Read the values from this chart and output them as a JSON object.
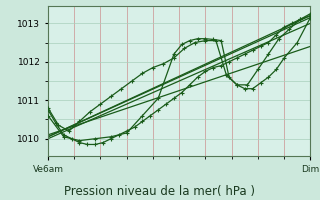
{
  "bg_color": "#cce8dc",
  "plot_bg_color": "#d8f0e8",
  "grid_color_v": "#dda0a0",
  "grid_color_h": "#aad0bc",
  "line_color": "#1a5c1a",
  "title": "Pression niveau de la mer( hPa )",
  "title_fontsize": 8.5,
  "xlabel_left": "Ve6am",
  "xlabel_right": "Dim",
  "ylabel_ticks": [
    1010,
    1011,
    1012,
    1013
  ],
  "ylim": [
    1009.55,
    1013.45
  ],
  "xlim": [
    0,
    100
  ],
  "line1_x": [
    0,
    3,
    6,
    9,
    12,
    15,
    18,
    21,
    24,
    27,
    30,
    33,
    36,
    39,
    42,
    45,
    48,
    51,
    54,
    57,
    60,
    63,
    66,
    69,
    72,
    75,
    78,
    81,
    84,
    87,
    90,
    93,
    96,
    100
  ],
  "line1_y": [
    1010.75,
    1010.4,
    1010.1,
    1010.0,
    1009.9,
    1009.85,
    1009.85,
    1009.9,
    1010.0,
    1010.1,
    1010.2,
    1010.3,
    1010.45,
    1010.6,
    1010.75,
    1010.9,
    1011.05,
    1011.2,
    1011.4,
    1011.6,
    1011.75,
    1011.85,
    1011.9,
    1012.0,
    1012.1,
    1012.2,
    1012.3,
    1012.4,
    1012.5,
    1012.7,
    1012.9,
    1013.0,
    1013.1,
    1013.2
  ],
  "line2_x": [
    0,
    6,
    12,
    18,
    24,
    30,
    36,
    42,
    48,
    51,
    54,
    57,
    60,
    63,
    66,
    69,
    72,
    75,
    78,
    81,
    84,
    87,
    90,
    95,
    100
  ],
  "line2_y": [
    1010.6,
    1010.05,
    1009.95,
    1010.0,
    1010.05,
    1010.15,
    1010.6,
    1011.05,
    1012.2,
    1012.45,
    1012.55,
    1012.6,
    1012.6,
    1012.58,
    1012.55,
    1011.6,
    1011.4,
    1011.3,
    1011.3,
    1011.45,
    1011.6,
    1011.8,
    1012.1,
    1012.5,
    1013.15
  ],
  "line3_x": [
    0,
    4,
    8,
    12,
    16,
    20,
    24,
    28,
    32,
    36,
    40,
    44,
    48,
    52,
    56,
    60,
    64,
    68,
    72,
    76,
    80,
    84,
    88,
    92,
    96,
    100
  ],
  "line3_y": [
    1010.8,
    1010.35,
    1010.2,
    1010.45,
    1010.7,
    1010.9,
    1011.1,
    1011.3,
    1011.5,
    1011.7,
    1011.85,
    1011.95,
    1012.1,
    1012.35,
    1012.5,
    1012.55,
    1012.55,
    1011.65,
    1011.4,
    1011.4,
    1011.8,
    1012.2,
    1012.6,
    1012.85,
    1013.1,
    1013.25
  ],
  "trend1_x": [
    0,
    100
  ],
  "trend1_y": [
    1010.05,
    1013.2
  ],
  "trend2_x": [
    0,
    100
  ],
  "trend2_y": [
    1010.0,
    1013.0
  ],
  "trend3_x": [
    0,
    100
  ],
  "trend3_y": [
    1010.05,
    1013.15
  ],
  "trend4_x": [
    0,
    100
  ],
  "trend4_y": [
    1010.1,
    1012.4
  ]
}
